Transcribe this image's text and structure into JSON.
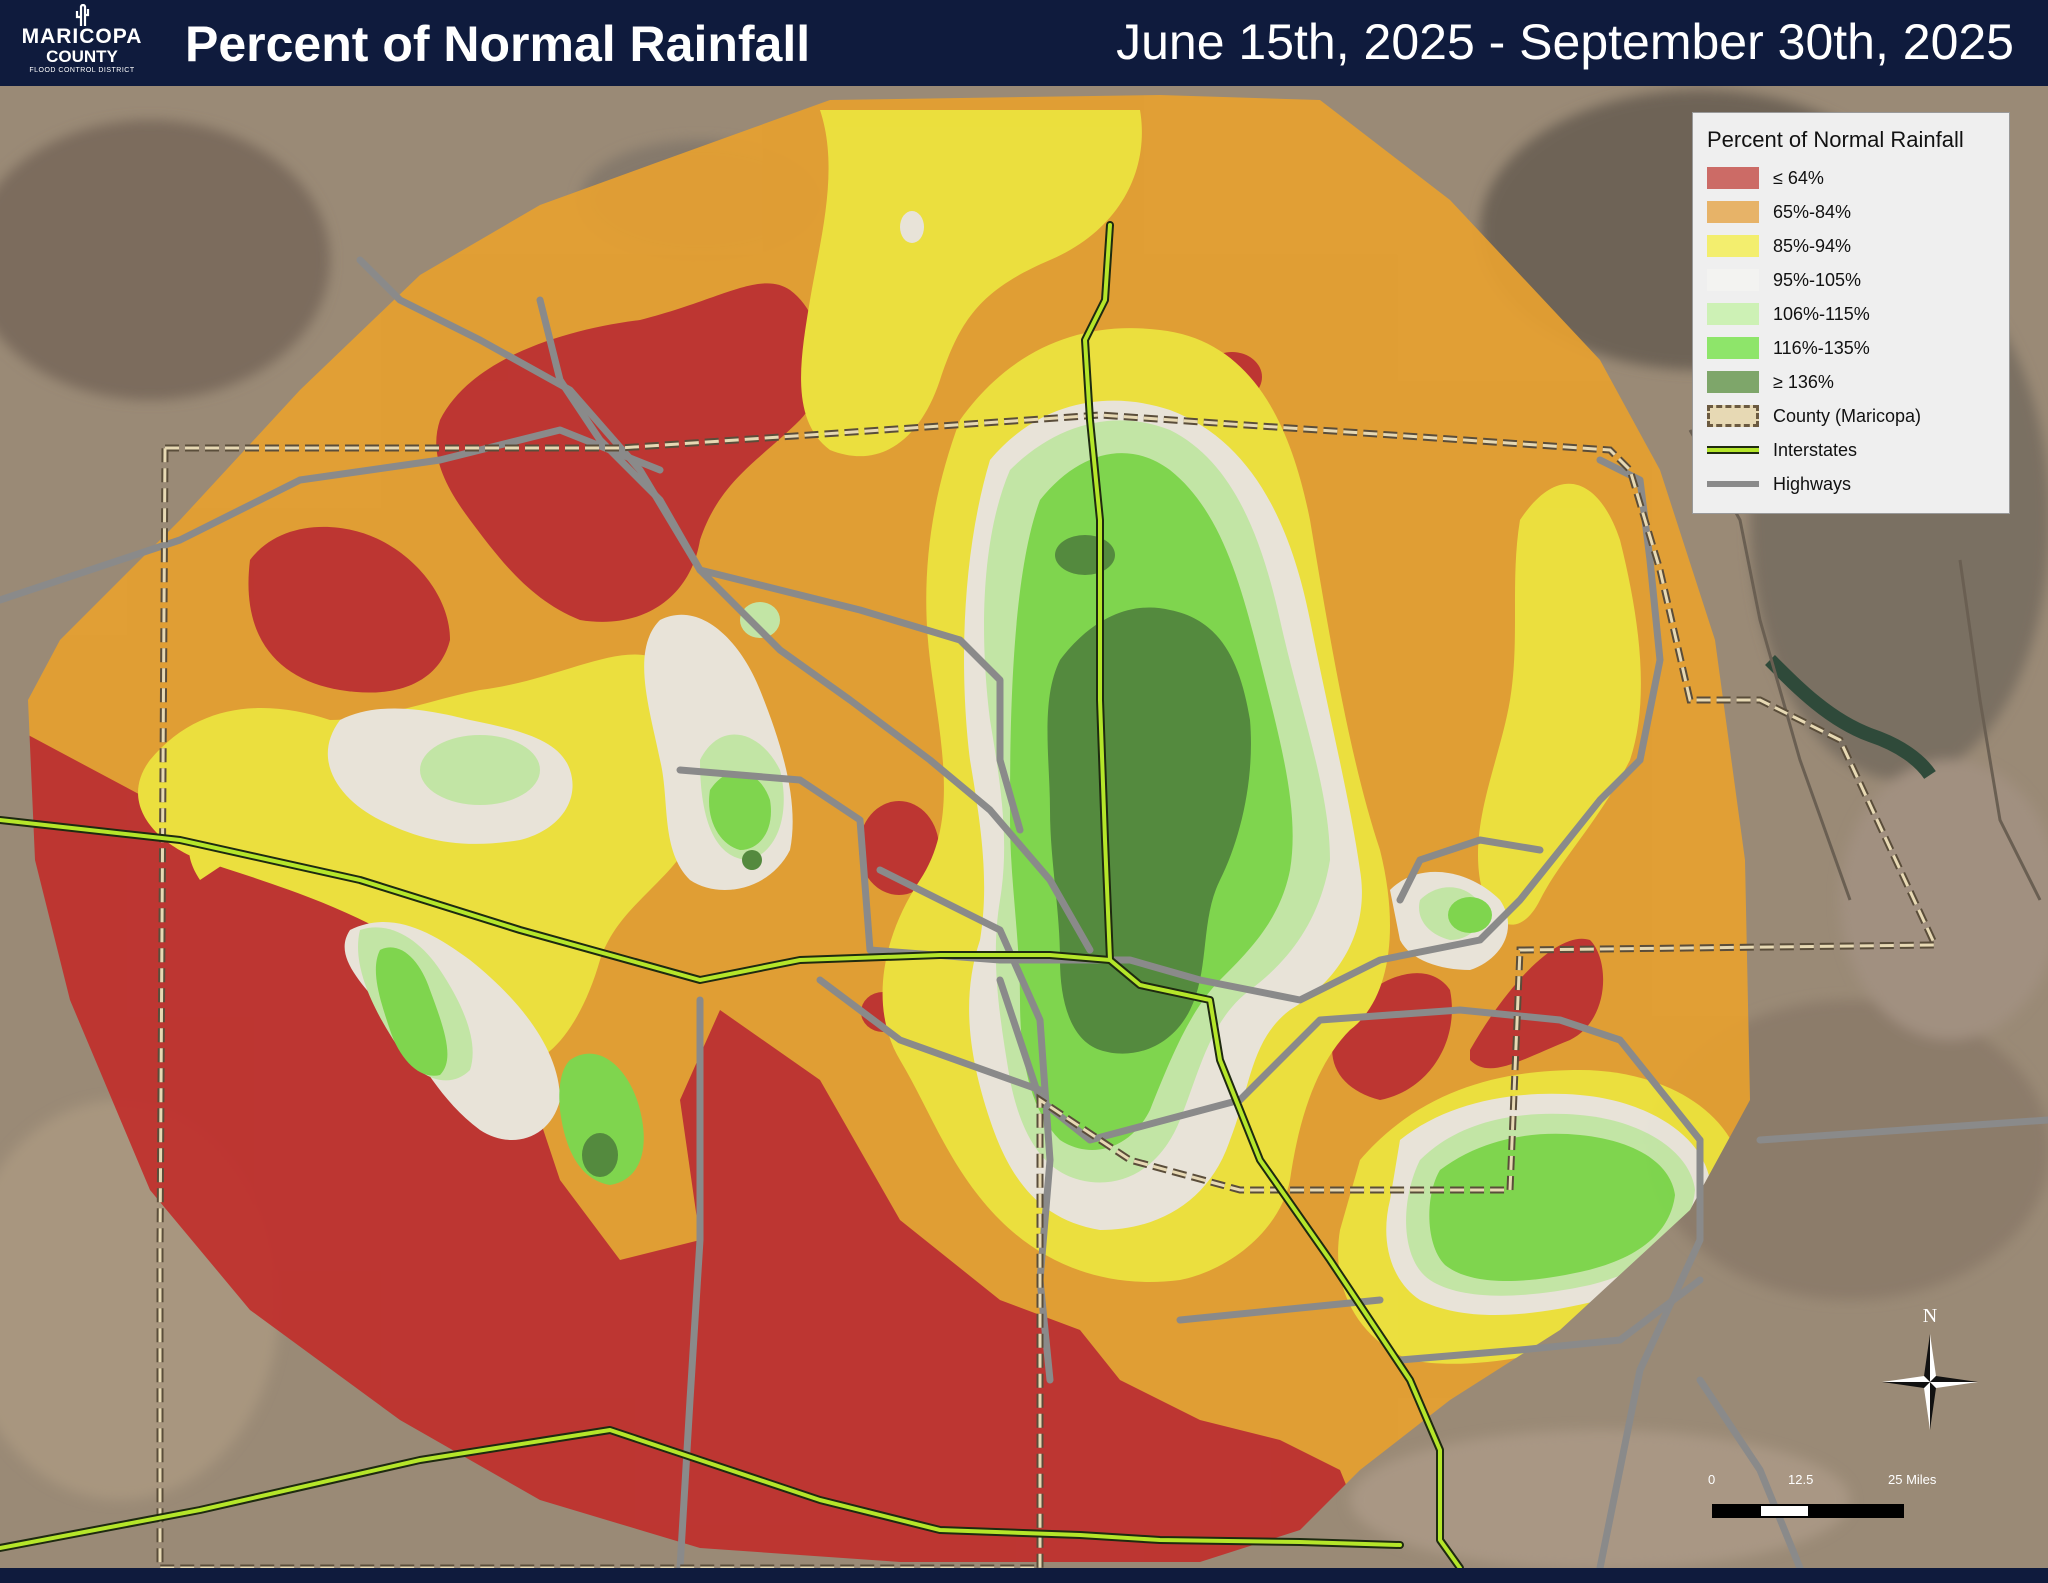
{
  "header": {
    "logo": {
      "line1": "MARICOPA",
      "line2": "COUNTY",
      "line3": "FLOOD CONTROL DISTRICT"
    },
    "title": "Percent of Normal Rainfall",
    "date_range": "June 15th, 2025 - September 30th, 2025"
  },
  "legend": {
    "title": "Percent of Normal Rainfall",
    "items": [
      {
        "label": "≤ 64%",
        "color": "#c0302d"
      },
      {
        "label": "65%-84%",
        "color": "#e6a030"
      },
      {
        "label": "85%-94%",
        "color": "#f2e63a"
      },
      {
        "label": "95%-105%",
        "color": "#eeeae0"
      },
      {
        "label": "106%-115%",
        "color": "#c6eca9"
      },
      {
        "label": "116%-135%",
        "color": "#7ddb4c"
      },
      {
        "label": "≥ 136%",
        "color": "#4f8a3a"
      },
      {
        "label": "County (Maricopa)",
        "color": "#e7d9b4"
      },
      {
        "label": "Interstates",
        "color": "#b5e62a"
      },
      {
        "label": "Highways",
        "color": "#8a8a8a"
      }
    ]
  },
  "north_arrow": {
    "label": "N"
  },
  "scale": {
    "ticks": [
      "0",
      "12.5",
      "25 Miles"
    ]
  }
}
